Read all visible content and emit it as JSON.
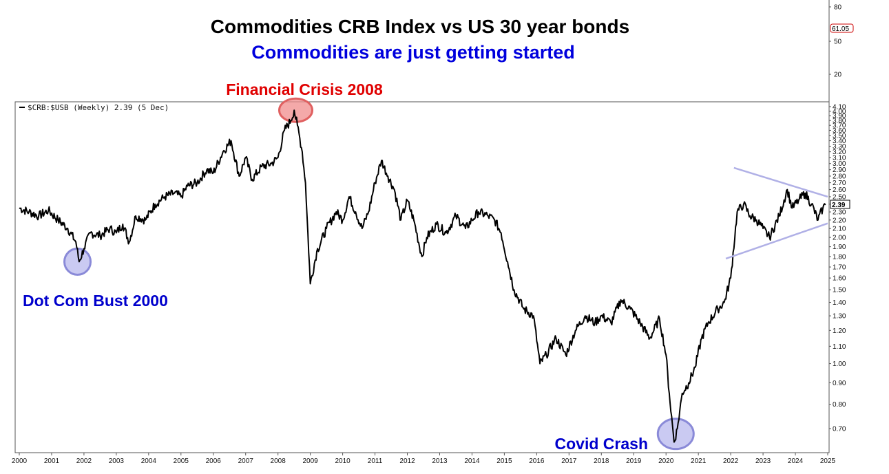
{
  "chart_data": {
    "type": "line",
    "title": "Commodities CRB Index vs US 30 year bonds",
    "subtitle": "Commodities are just getting started",
    "legend": "$CRB:$USB (Weekly) 2.39 (5 Dec)",
    "last_value_label": "2.39",
    "upper_panel": {
      "tick_labels": [
        "80",
        "50",
        "20"
      ],
      "last_value_label": "61.05"
    },
    "x_ticks": [
      "2000",
      "2001",
      "2002",
      "2003",
      "2004",
      "2005",
      "2006",
      "2007",
      "2008",
      "2009",
      "2010",
      "2011",
      "2012",
      "2013",
      "2014",
      "2015",
      "2016",
      "2017",
      "2018",
      "2019",
      "2020",
      "2021",
      "2022",
      "2023",
      "2024",
      "2025"
    ],
    "y_scale": "log",
    "ylim": [
      0.6,
      4.1
    ],
    "y_ticks": [
      "4.10",
      "4.00",
      "3.90",
      "3.80",
      "3.70",
      "3.60",
      "3.50",
      "3.40",
      "3.30",
      "3.20",
      "3.10",
      "3.00",
      "2.90",
      "2.80",
      "2.70",
      "2.60",
      "2.50",
      "2.40",
      "2.30",
      "2.20",
      "2.10",
      "2.00",
      "1.90",
      "1.80",
      "1.70",
      "1.60",
      "1.50",
      "1.40",
      "1.30",
      "1.20",
      "1.10",
      "1.00",
      "0.90",
      "0.80",
      "0.70"
    ],
    "series": [
      {
        "color": "#000000",
        "x": [
          2000.0,
          2000.3,
          2000.6,
          2000.9,
          2001.2,
          2001.5,
          2001.75,
          2001.85,
          2002.0,
          2002.2,
          2002.5,
          2002.8,
          2003.0,
          2003.2,
          2003.4,
          2003.6,
          2003.9,
          2004.2,
          2004.5,
          2004.8,
          2005.0,
          2005.2,
          2005.5,
          2005.8,
          2006.0,
          2006.3,
          2006.55,
          2006.8,
          2007.0,
          2007.2,
          2007.5,
          2007.8,
          2008.0,
          2008.2,
          2008.4,
          2008.5,
          2008.6,
          2008.75,
          2008.85,
          2009.0,
          2009.2,
          2009.5,
          2009.8,
          2010.0,
          2010.2,
          2010.4,
          2010.6,
          2010.8,
          2011.0,
          2011.2,
          2011.4,
          2011.6,
          2011.8,
          2012.0,
          2012.2,
          2012.45,
          2012.6,
          2012.9,
          2013.2,
          2013.5,
          2013.8,
          2014.0,
          2014.2,
          2014.5,
          2014.7,
          2014.9,
          2015.1,
          2015.3,
          2015.6,
          2015.9,
          2016.1,
          2016.3,
          2016.6,
          2016.9,
          2017.2,
          2017.5,
          2017.8,
          2018.0,
          2018.3,
          2018.6,
          2018.9,
          2019.2,
          2019.5,
          2019.8,
          2020.0,
          2020.1,
          2020.25,
          2020.35,
          2020.5,
          2020.7,
          2020.9,
          2021.1,
          2021.3,
          2021.6,
          2021.8,
          2022.0,
          2022.2,
          2022.4,
          2022.6,
          2022.8,
          2023.0,
          2023.2,
          2023.5,
          2023.75,
          2023.9,
          2024.1,
          2024.3,
          2024.5,
          2024.7,
          2024.85,
          2024.93
        ],
        "values": [
          2.35,
          2.3,
          2.25,
          2.32,
          2.2,
          2.1,
          1.95,
          1.75,
          1.88,
          2.05,
          2.02,
          2.1,
          2.05,
          2.15,
          1.95,
          2.25,
          2.2,
          2.4,
          2.5,
          2.55,
          2.5,
          2.65,
          2.7,
          2.9,
          2.85,
          3.2,
          3.4,
          2.8,
          3.1,
          2.75,
          2.95,
          3.0,
          3.1,
          3.6,
          3.8,
          4.02,
          3.7,
          3.2,
          2.7,
          1.55,
          1.85,
          2.1,
          2.3,
          2.2,
          2.5,
          2.3,
          2.1,
          2.3,
          2.7,
          3.05,
          2.8,
          2.6,
          2.2,
          2.45,
          2.2,
          1.8,
          2.0,
          2.15,
          2.05,
          2.25,
          2.1,
          2.2,
          2.3,
          2.25,
          2.2,
          2.05,
          1.75,
          1.5,
          1.35,
          1.3,
          1.0,
          1.05,
          1.15,
          1.05,
          1.2,
          1.3,
          1.25,
          1.3,
          1.25,
          1.42,
          1.35,
          1.25,
          1.15,
          1.28,
          1.05,
          0.85,
          0.65,
          0.7,
          0.85,
          0.9,
          0.98,
          1.15,
          1.25,
          1.35,
          1.4,
          1.6,
          2.3,
          2.4,
          2.25,
          2.2,
          2.1,
          2.0,
          2.25,
          2.6,
          2.35,
          2.45,
          2.55,
          2.4,
          2.2,
          2.35,
          2.39
        ]
      }
    ],
    "trendlines": [
      {
        "color": "#b0b0e6",
        "x": [
          2022.1,
          2025.0
        ],
        "values": [
          2.93,
          2.5
        ]
      },
      {
        "color": "#b0b0e6",
        "x": [
          2021.85,
          2025.0
        ],
        "values": [
          1.78,
          2.16
        ]
      }
    ],
    "annotations": [
      {
        "text": "Financial Crisis 2008",
        "color": "#e00000",
        "x": 2008.55,
        "y": 4.02,
        "circle_fill": "#f08c8c",
        "circle_stroke": "#e06060"
      },
      {
        "text": "Dot Com Bust 2000",
        "color": "#0000cc",
        "x": 2001.8,
        "y": 1.75,
        "circle_fill": "#b8b8ee",
        "circle_stroke": "#8a8ad8"
      },
      {
        "text": "Covid Crash",
        "color": "#0000cc",
        "x": 2020.3,
        "y": 0.68,
        "circle_fill": "#b8b8ee",
        "circle_stroke": "#8a8ad8"
      }
    ]
  }
}
